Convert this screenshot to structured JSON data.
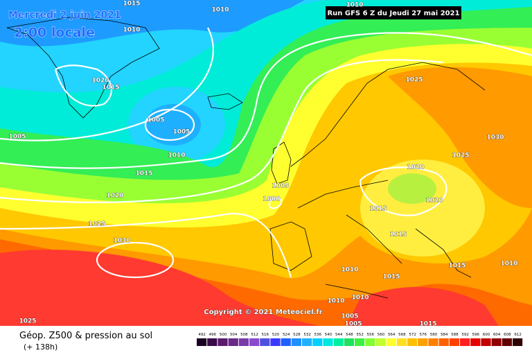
{
  "header": {
    "date": "Mercredi 2 juin 2021",
    "time": "2:00 locale",
    "run": "Run GFS 6 Z du Jeudi 27 mai 2021"
  },
  "isobar_labels": [
    1015,
    1010,
    1010,
    1010,
    1020,
    1015,
    1005,
    1005,
    1005,
    1010,
    1015,
    1020,
    1025,
    1030,
    1025,
    1030,
    1025,
    1020,
    1005,
    1000,
    1015,
    1020,
    1015,
    1015,
    1010,
    1010,
    1015,
    1010,
    1010,
    1005,
    1005,
    1015,
    1025
  ],
  "copyright": "Copyright © 2021 Meteociel.fr",
  "footer": {
    "title": "Géop. Z500 & pression au sol",
    "lead": "(+ 138h)"
  },
  "scale": {
    "ticks": [
      492,
      496,
      500,
      504,
      508,
      512,
      516,
      520,
      524,
      528,
      532,
      536,
      540,
      544,
      548,
      552,
      556,
      560,
      564,
      568,
      572,
      576,
      580,
      584,
      588,
      592,
      596,
      600,
      604,
      608,
      612
    ],
    "colors": [
      "#1a0020",
      "#3a0a4a",
      "#5a1a6e",
      "#6a2a8a",
      "#7a3aa8",
      "#8a4acc",
      "#5050e0",
      "#3a3aff",
      "#2060ff",
      "#1e90ff",
      "#20b0ff",
      "#00d0ff",
      "#00e8e0",
      "#00f0a0",
      "#20e060",
      "#40f040",
      "#80ff30",
      "#c0ff30",
      "#ffff30",
      "#ffe020",
      "#ffc000",
      "#ffa000",
      "#ff8000",
      "#ff6000",
      "#ff4000",
      "#ff2020",
      "#e80000",
      "#c00000",
      "#900000",
      "#600000",
      "#300000"
    ]
  }
}
